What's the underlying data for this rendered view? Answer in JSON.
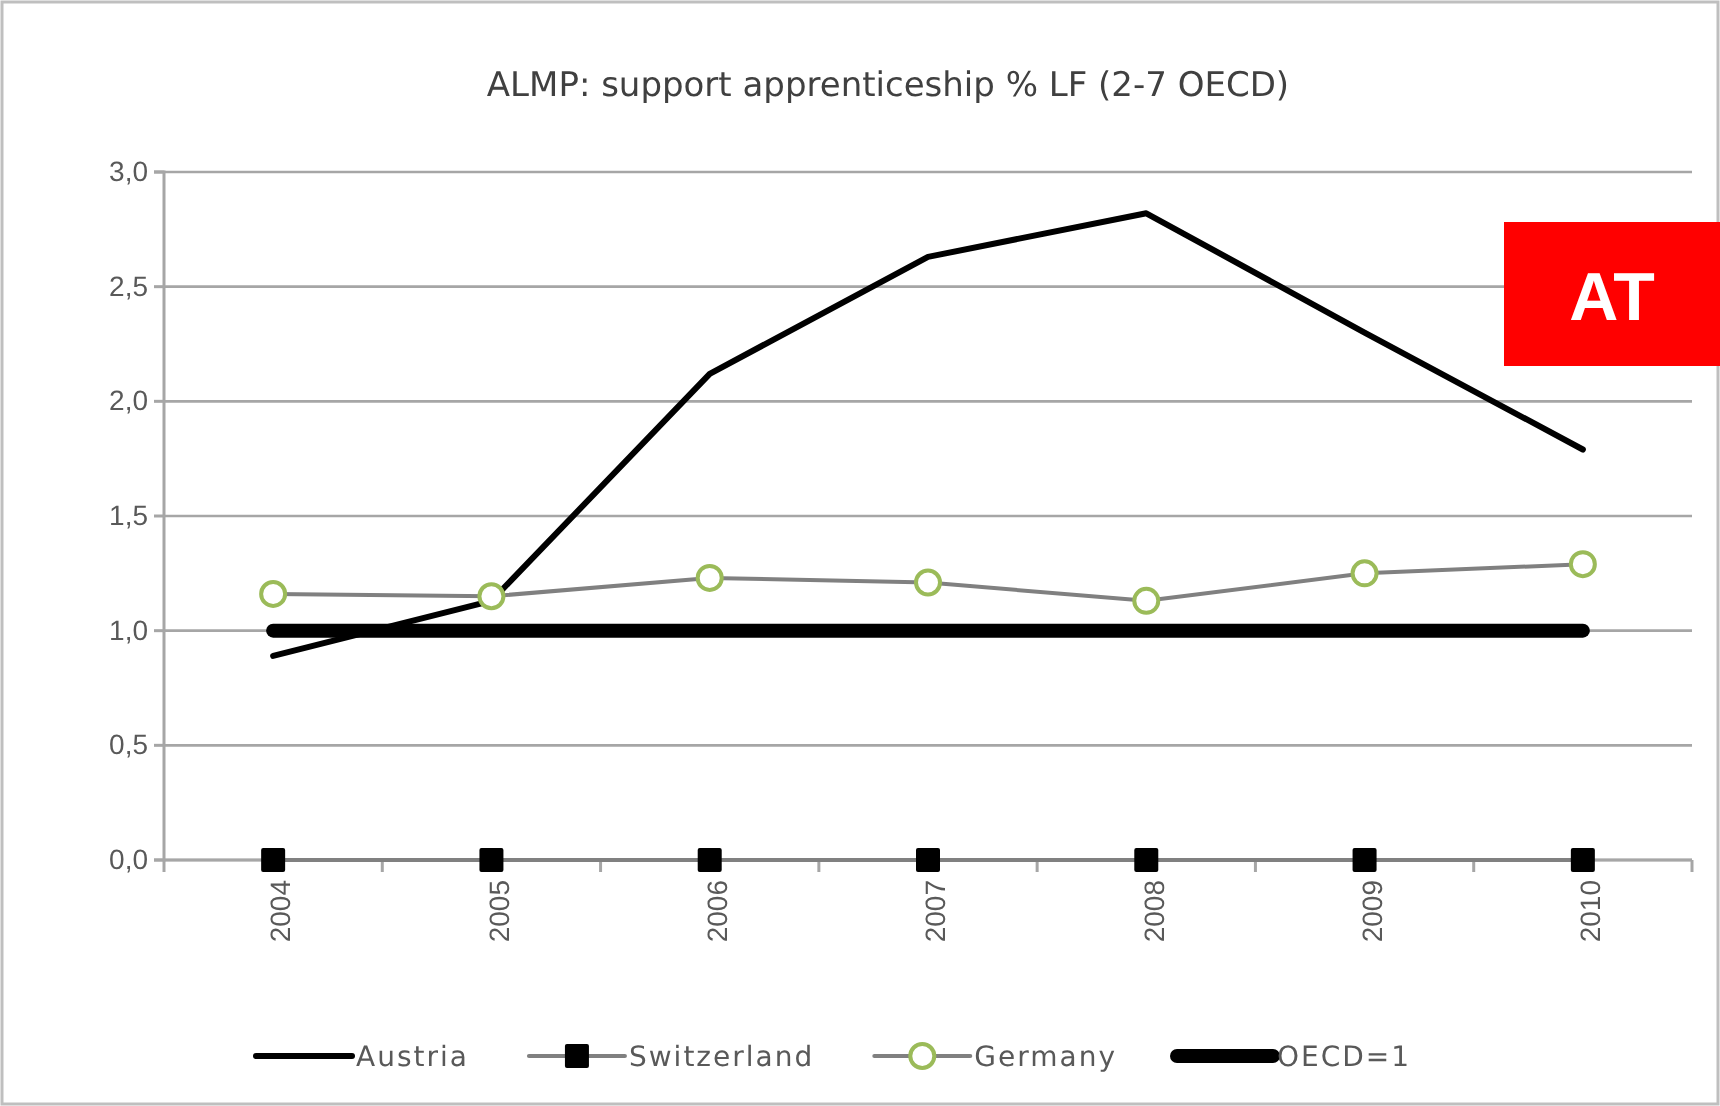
{
  "chart_data": {
    "type": "line",
    "title": "ALMP: support apprenticeship % LF (2-7 OECD)",
    "categories": [
      "2004",
      "2005",
      "2006",
      "2007",
      "2008",
      "2009",
      "2010"
    ],
    "series": [
      {
        "name": "Austria",
        "color": "#000000",
        "marker": "none",
        "values": [
          0.89,
          1.13,
          2.12,
          2.63,
          2.82,
          2.3,
          1.79
        ]
      },
      {
        "name": "Switzerland",
        "color": "#808080",
        "marker": "square",
        "values": [
          0,
          0,
          0,
          0,
          0,
          0,
          0
        ]
      },
      {
        "name": "Germany",
        "color": "#808080",
        "marker": "circle",
        "values": [
          1.16,
          1.15,
          1.23,
          1.21,
          1.13,
          1.25,
          1.29
        ]
      },
      {
        "name": "OECD=1",
        "color": "#000000",
        "marker": "none",
        "values": [
          1,
          1,
          1,
          1,
          1,
          1,
          1
        ]
      }
    ],
    "ylim": [
      0,
      3
    ],
    "yticks": [
      {
        "value": 0,
        "label": "0,0"
      },
      {
        "value": 0.5,
        "label": "0,5"
      },
      {
        "value": 1,
        "label": "1,0"
      },
      {
        "value": 1.5,
        "label": "1,5"
      },
      {
        "value": 2,
        "label": "2,0"
      },
      {
        "value": 2.5,
        "label": "2,5"
      },
      {
        "value": 3,
        "label": "3,0"
      }
    ],
    "grid": "y",
    "legend": "bottom",
    "line_style": "solid",
    "annotations": [
      "AT"
    ]
  }
}
